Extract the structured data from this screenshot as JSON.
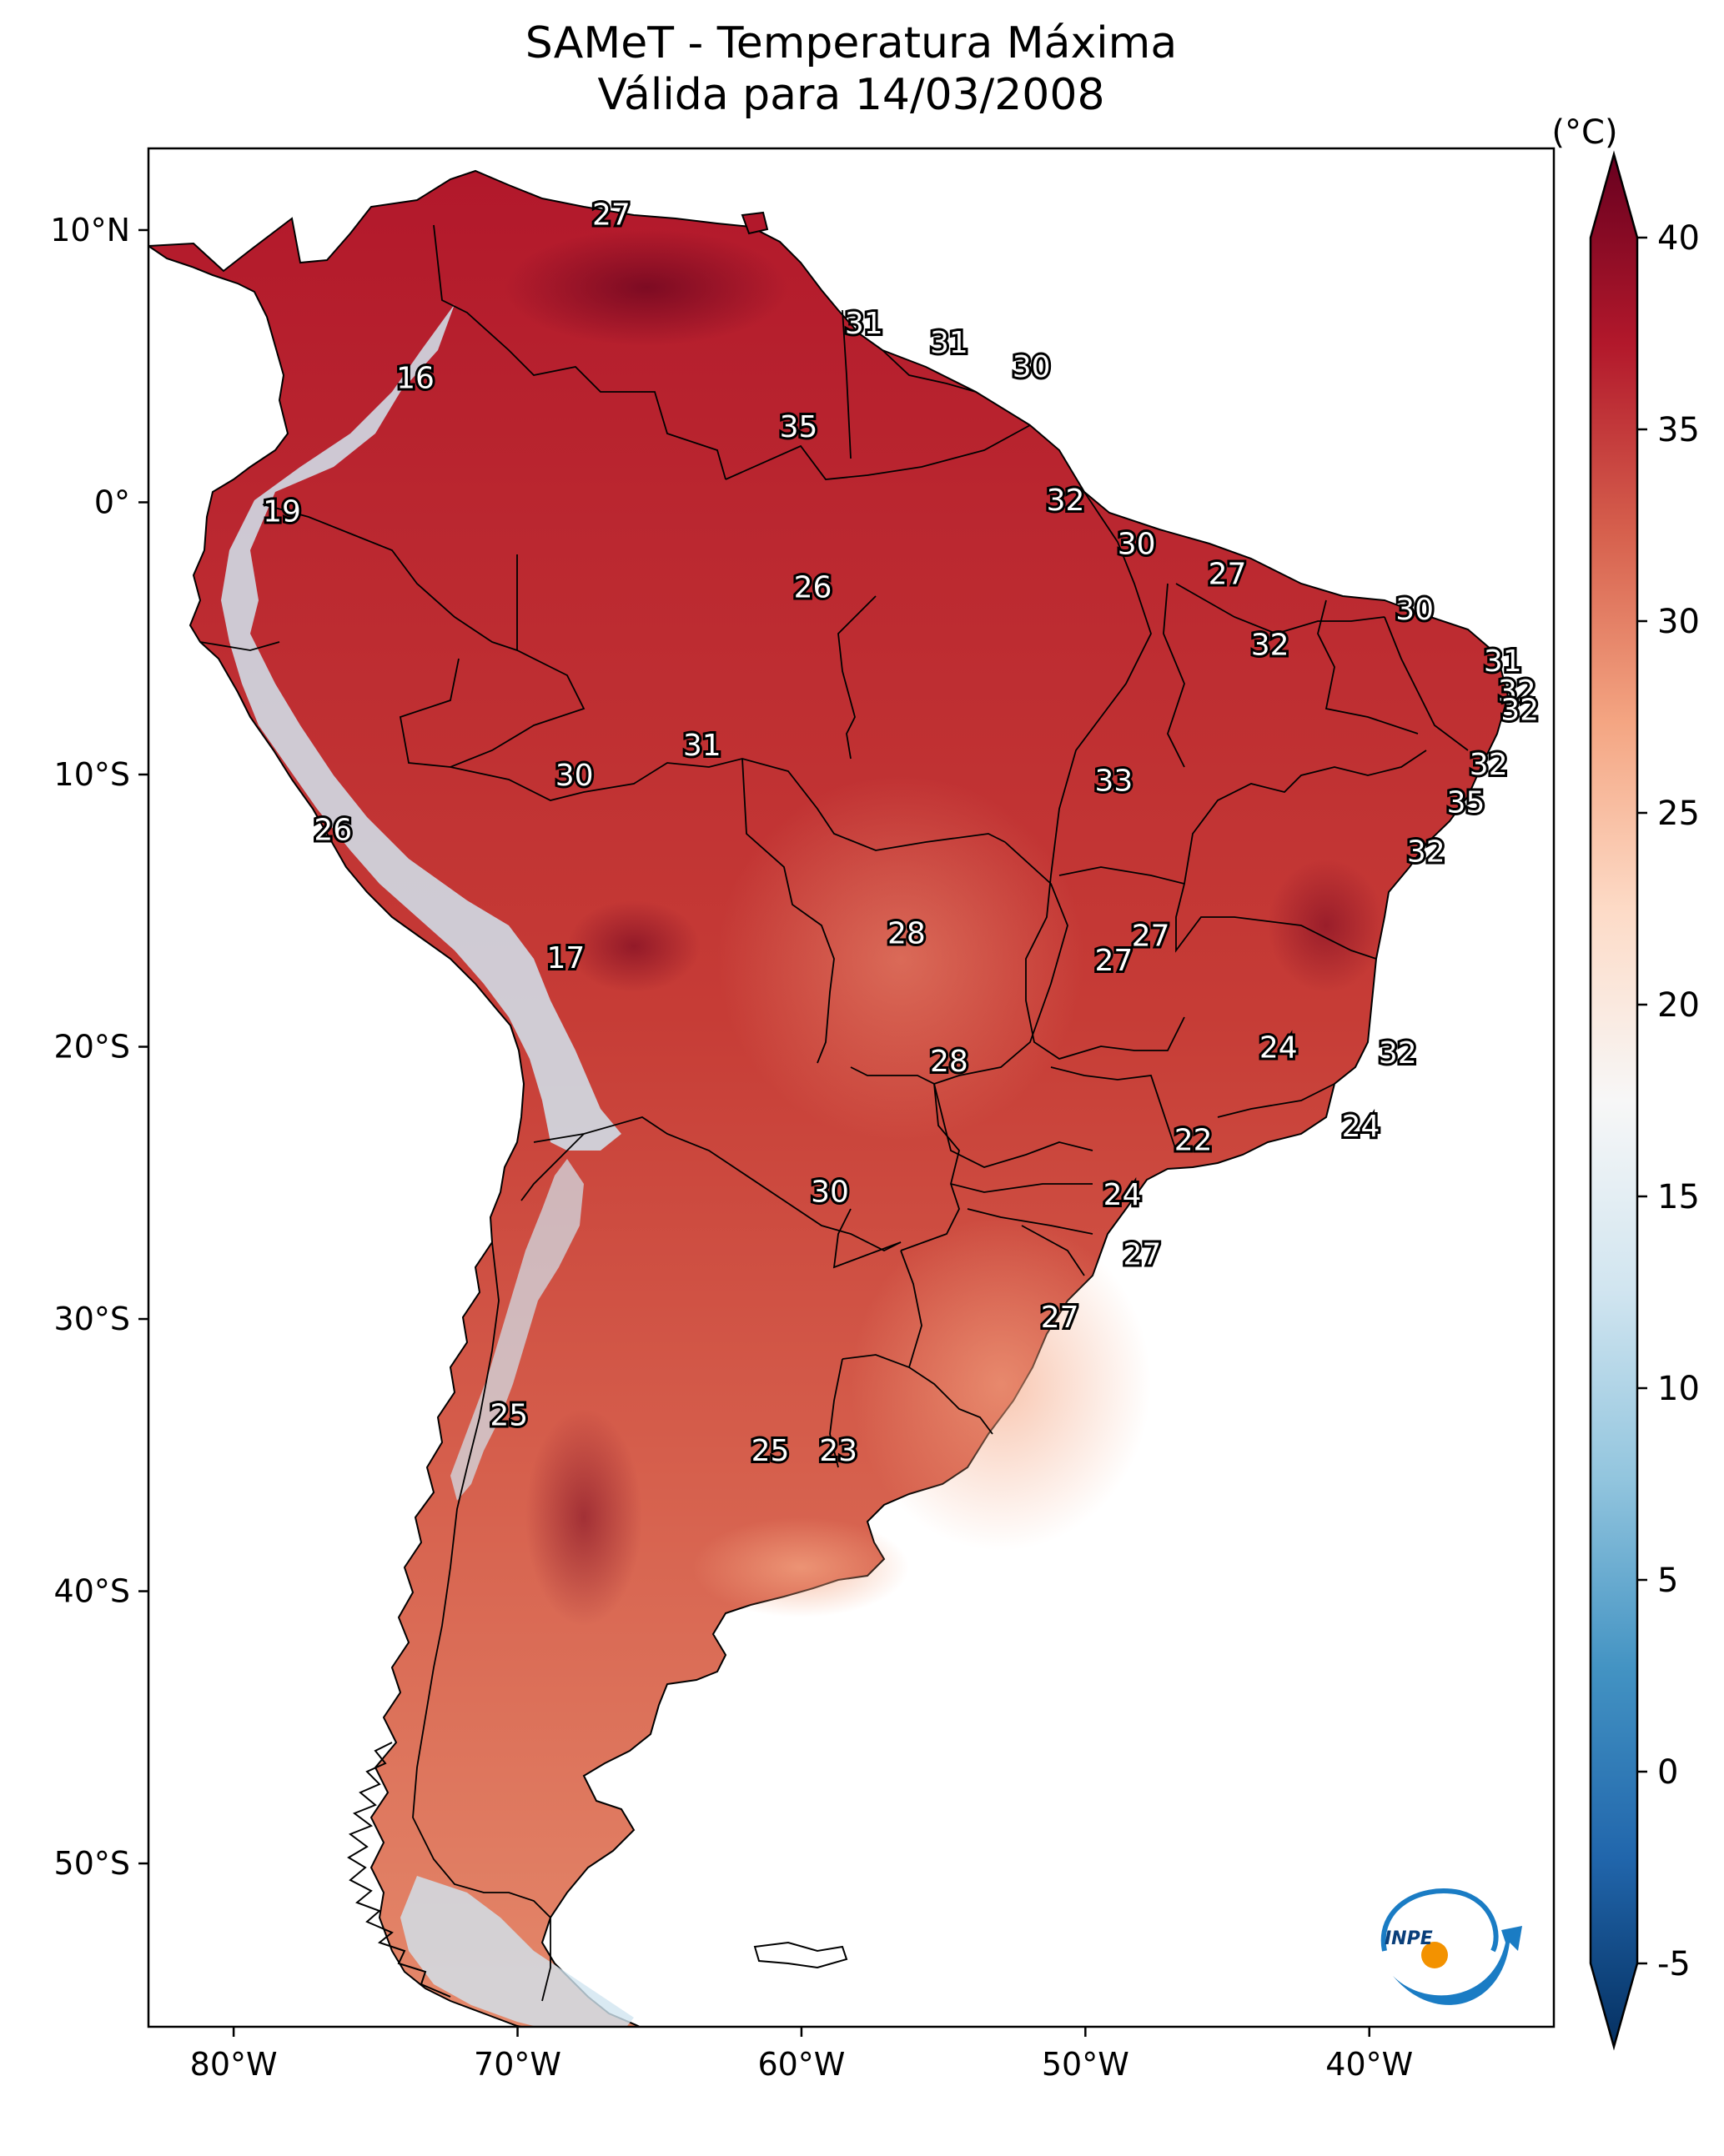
{
  "title": {
    "line1": "SAMeT - Temperatura Máxima",
    "line2": "Válida para 14/03/2008"
  },
  "map": {
    "region": "South America",
    "variable": "Maximum temperature",
    "lon_ticks": [
      {
        "value": -80,
        "label": "80°W"
      },
      {
        "value": -70,
        "label": "70°W"
      },
      {
        "value": -60,
        "label": "60°W"
      },
      {
        "value": -50,
        "label": "50°W"
      },
      {
        "value": -40,
        "label": "40°W"
      }
    ],
    "lat_ticks": [
      {
        "value": 10,
        "label": "10°N"
      },
      {
        "value": 0,
        "label": "0°"
      },
      {
        "value": -10,
        "label": "10°S"
      },
      {
        "value": -20,
        "label": "20°S"
      },
      {
        "value": -30,
        "label": "30°S"
      },
      {
        "value": -40,
        "label": "40°S"
      },
      {
        "value": -50,
        "label": "50°S"
      }
    ],
    "extent": {
      "lon_min": -83,
      "lon_max": -33.5,
      "lat_min": -56,
      "lat_max": 13
    },
    "labels": [
      {
        "lon": -66.7,
        "lat": 10.6,
        "text": "27"
      },
      {
        "lon": -57.8,
        "lat": 6.6,
        "text": "31"
      },
      {
        "lon": -54.8,
        "lat": 5.9,
        "text": "31"
      },
      {
        "lon": -51.9,
        "lat": 5.0,
        "text": "30"
      },
      {
        "lon": -73.6,
        "lat": 4.6,
        "text": "16"
      },
      {
        "lon": -60.1,
        "lat": 2.8,
        "text": "35"
      },
      {
        "lon": -50.7,
        "lat": 0.1,
        "text": "32"
      },
      {
        "lon": -78.3,
        "lat": -0.3,
        "text": "19"
      },
      {
        "lon": -48.2,
        "lat": -1.5,
        "text": "30"
      },
      {
        "lon": -45.0,
        "lat": -2.6,
        "text": "27"
      },
      {
        "lon": -59.6,
        "lat": -3.1,
        "text": "26"
      },
      {
        "lon": -38.4,
        "lat": -3.9,
        "text": "30"
      },
      {
        "lon": -43.5,
        "lat": -5.2,
        "text": "32"
      },
      {
        "lon": -35.3,
        "lat": -5.8,
        "text": "31"
      },
      {
        "lon": -34.8,
        "lat": -6.9,
        "text": "32"
      },
      {
        "lon": -34.7,
        "lat": -7.6,
        "text": "32"
      },
      {
        "lon": -63.5,
        "lat": -8.9,
        "text": "31"
      },
      {
        "lon": -35.8,
        "lat": -9.6,
        "text": "32"
      },
      {
        "lon": -68.0,
        "lat": -10.0,
        "text": "30"
      },
      {
        "lon": -49.0,
        "lat": -10.2,
        "text": "33"
      },
      {
        "lon": -36.6,
        "lat": -11.0,
        "text": "35"
      },
      {
        "lon": -76.5,
        "lat": -12.0,
        "text": "26"
      },
      {
        "lon": -38.0,
        "lat": -12.8,
        "text": "32"
      },
      {
        "lon": -56.3,
        "lat": -15.8,
        "text": "28"
      },
      {
        "lon": -47.7,
        "lat": -15.9,
        "text": "27"
      },
      {
        "lon": -49.0,
        "lat": -16.8,
        "text": "27"
      },
      {
        "lon": -68.3,
        "lat": -16.7,
        "text": "17"
      },
      {
        "lon": -43.2,
        "lat": -20.0,
        "text": "24"
      },
      {
        "lon": -39.0,
        "lat": -20.2,
        "text": "32"
      },
      {
        "lon": -54.8,
        "lat": -20.5,
        "text": "28"
      },
      {
        "lon": -40.3,
        "lat": -22.9,
        "text": "24"
      },
      {
        "lon": -46.2,
        "lat": -23.4,
        "text": "22"
      },
      {
        "lon": -59.0,
        "lat": -25.3,
        "text": "30"
      },
      {
        "lon": -48.7,
        "lat": -25.4,
        "text": "24"
      },
      {
        "lon": -48.0,
        "lat": -27.6,
        "text": "27"
      },
      {
        "lon": -50.9,
        "lat": -29.9,
        "text": "27"
      },
      {
        "lon": -70.3,
        "lat": -33.5,
        "text": "25"
      },
      {
        "lon": -61.1,
        "lat": -34.8,
        "text": "25"
      },
      {
        "lon": -58.7,
        "lat": -34.8,
        "text": "23"
      }
    ]
  },
  "colorbar": {
    "unit": "(°C)",
    "colors": [
      "#053061",
      "#2166ac",
      "#4393c3",
      "#92c5de",
      "#d1e5f0",
      "#f7f7f7",
      "#fddbc7",
      "#f4a582",
      "#d6604d",
      "#b2182b",
      "#67001f"
    ],
    "min": -5,
    "max": 40,
    "ticks": [
      {
        "value": 40,
        "label": "40"
      },
      {
        "value": 35,
        "label": "35"
      },
      {
        "value": 30,
        "label": "30"
      },
      {
        "value": 25,
        "label": "25"
      },
      {
        "value": 20,
        "label": "20"
      },
      {
        "value": 15,
        "label": "15"
      },
      {
        "value": 10,
        "label": "10"
      },
      {
        "value": 5,
        "label": "5"
      },
      {
        "value": 0,
        "label": "0"
      },
      {
        "value": -5,
        "label": "-5"
      }
    ]
  },
  "logo": {
    "text": "INPE",
    "blue": "#1a7cc4",
    "orange": "#f39200"
  }
}
